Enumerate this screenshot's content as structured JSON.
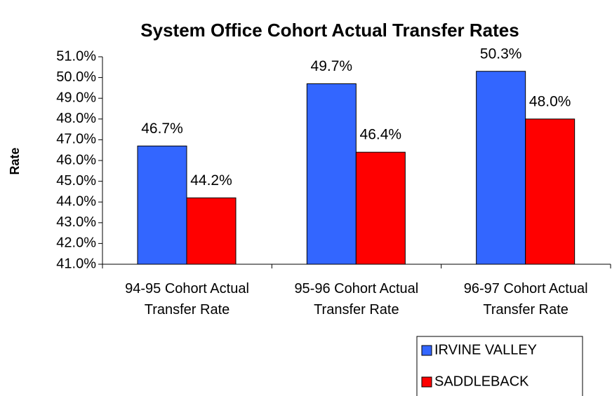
{
  "chart_data": {
    "type": "bar",
    "title": "System Office Cohort Actual Transfer Rates",
    "y_label": "Rate",
    "categories": [
      "94-95 Cohort Actual Transfer Rate",
      "95-96 Cohort Actual Transfer Rate",
      "96-97 Cohort Actual Transfer Rate"
    ],
    "series": [
      {
        "name": "IRVINE VALLEY",
        "color": "#3366ff",
        "values": [
          46.7,
          49.7,
          50.3
        ],
        "value_labels": [
          "46.7%",
          "49.7%",
          "50.3%"
        ]
      },
      {
        "name": "SADDLEBACK",
        "color": "#ff0000",
        "values": [
          44.2,
          46.4,
          48.0
        ],
        "value_labels": [
          "44.2%",
          "46.4%",
          "48.0%"
        ]
      }
    ],
    "ylim": [
      41,
      51
    ],
    "yticks": [
      {
        "value": 41,
        "label": "41.0%"
      },
      {
        "value": 42,
        "label": "42.0%"
      },
      {
        "value": 43,
        "label": "43.0%"
      },
      {
        "value": 44,
        "label": "44.0%"
      },
      {
        "value": 45,
        "label": "45.0%"
      },
      {
        "value": 46,
        "label": "46.0%"
      },
      {
        "value": 47,
        "label": "47.0%"
      },
      {
        "value": 48,
        "label": "48.0%"
      },
      {
        "value": 49,
        "label": "49.0%"
      },
      {
        "value": 50,
        "label": "50.0%"
      },
      {
        "value": 51,
        "label": "51.0%"
      }
    ],
    "grid": false,
    "legend": "bottom-right"
  }
}
